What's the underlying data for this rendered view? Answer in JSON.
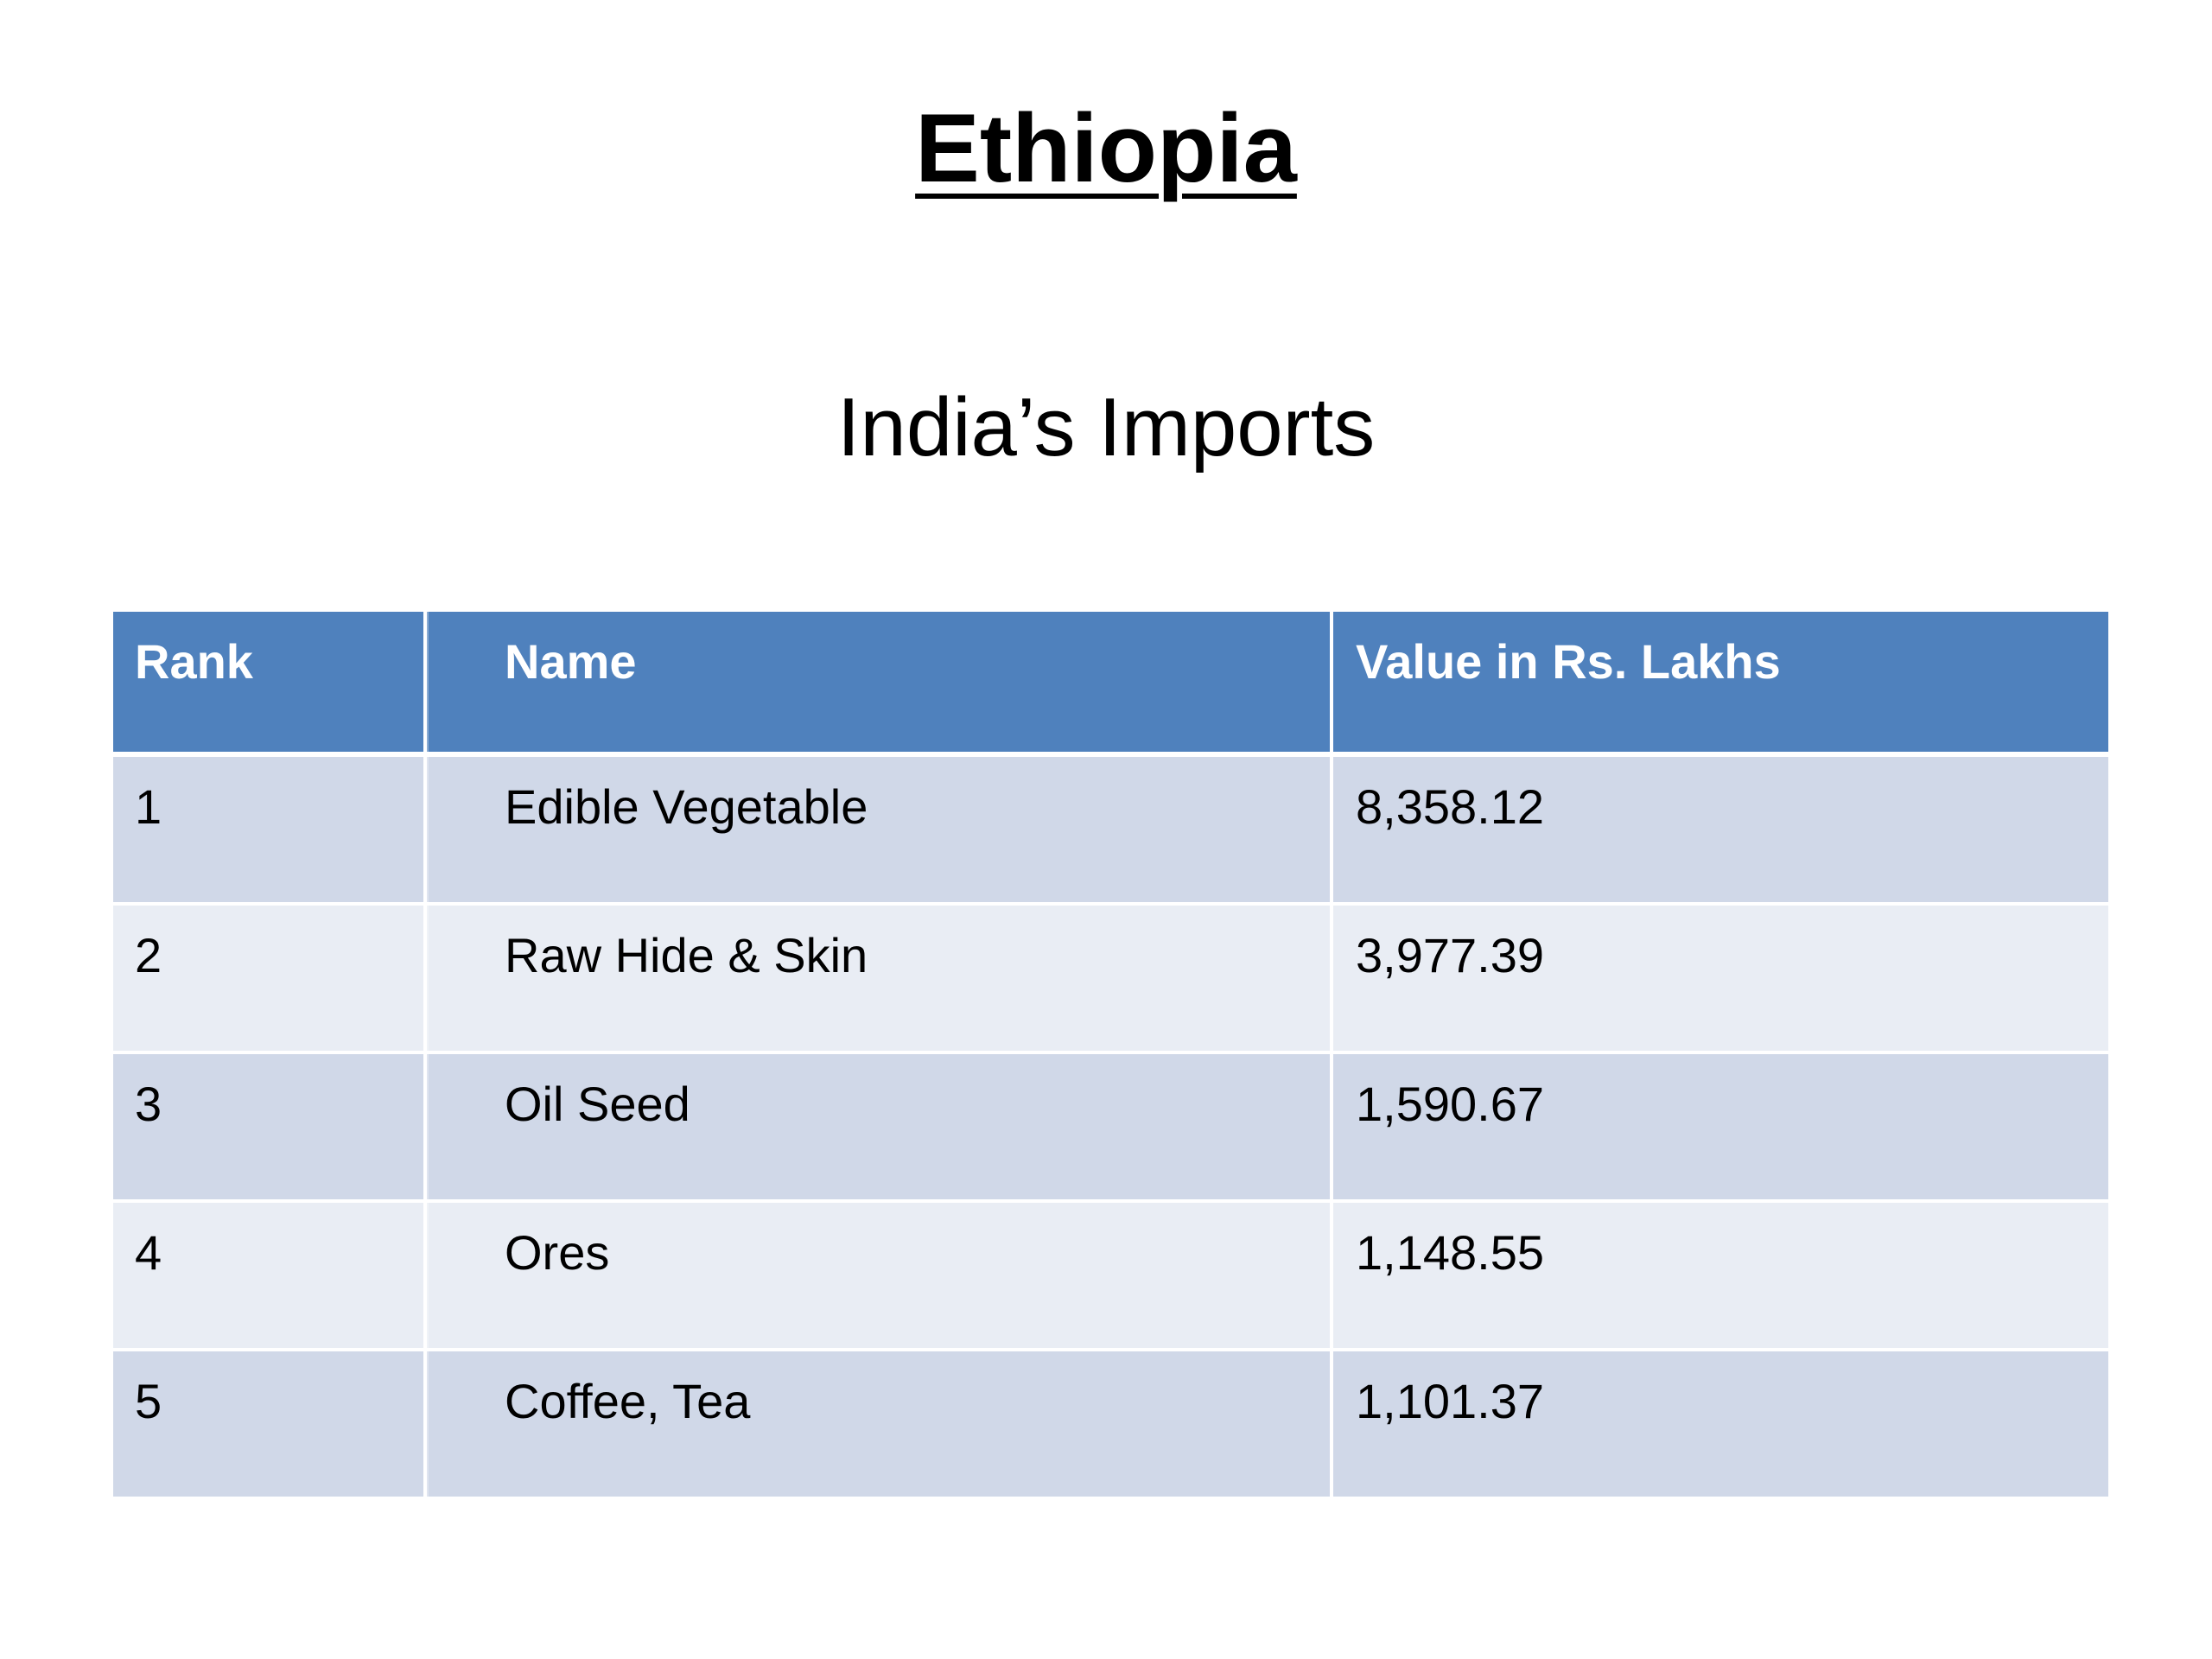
{
  "title": "Ethiopia",
  "subtitle": "India’s Imports",
  "table": {
    "header": [
      "Rank",
      "Name",
      "Value in Rs. Lakhs"
    ],
    "rows": [
      [
        "1",
        "Edible Vegetable",
        "8,358.12"
      ],
      [
        "2",
        "Raw Hide & Skin",
        "3,977.39"
      ],
      [
        "3",
        "Oil Seed",
        "1,590.67"
      ],
      [
        "4",
        "Ores",
        "1,148.55"
      ],
      [
        "5",
        "Coffee, Tea",
        "1,101.37"
      ]
    ]
  }
}
